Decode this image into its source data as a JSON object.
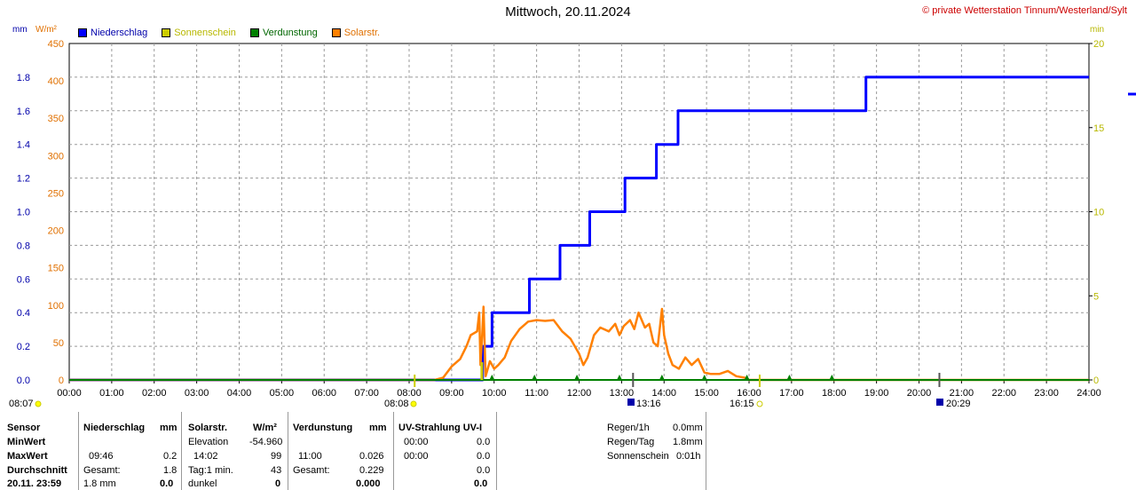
{
  "header": {
    "title": "Mittwoch, 20.11.2024",
    "copyright": "© private Wetterstation Tinnum/Westerland/Sylt",
    "unit_mm": "mm",
    "unit_wm2": "W/m²",
    "unit_min": "min"
  },
  "colors": {
    "niederschlag": "#0000ff",
    "sonnenschein": "#cccc00",
    "verdunstung": "#008000",
    "solar": "#ff8000"
  },
  "legend": {
    "items": [
      {
        "label": "Niederschlag",
        "color": "#0000ff",
        "text_color": "#0000aa"
      },
      {
        "label": "Sonnenschein",
        "color": "#cccc00",
        "text_color": "#b8b800"
      },
      {
        "label": "Verdunstung",
        "color": "#008000",
        "text_color": "#006600"
      },
      {
        "label": "Solarstr.",
        "color": "#ff8000",
        "text_color": "#e07000"
      }
    ]
  },
  "chart_data": {
    "type": "line",
    "title": "Mittwoch, 20.11.2024",
    "xlim": [
      0,
      24
    ],
    "x_ticks": [
      "00:00",
      "01:00",
      "02:00",
      "03:00",
      "04:00",
      "05:00",
      "06:00",
      "07:00",
      "08:00",
      "09:00",
      "10:00",
      "11:00",
      "12:00",
      "13:00",
      "14:00",
      "15:00",
      "16:00",
      "17:00",
      "18:00",
      "19:00",
      "20:00",
      "21:00",
      "22:00",
      "23:00",
      "24:00"
    ],
    "y_left_mm": {
      "ylim": [
        0,
        2.0
      ],
      "ticks": [
        "0.0",
        "0.2",
        "0.4",
        "0.6",
        "0.8",
        "1.0",
        "1.2",
        "1.4",
        "1.6",
        "1.8"
      ]
    },
    "y_left_wm2": {
      "ylim": [
        0,
        450
      ],
      "ticks": [
        "0",
        "50",
        "100",
        "150",
        "200",
        "250",
        "300",
        "350",
        "400",
        "450"
      ]
    },
    "y_right_min": {
      "ylim": [
        0,
        20
      ],
      "ticks": [
        "0",
        "5",
        "10",
        "15",
        "20"
      ]
    },
    "grid": true,
    "series": [
      {
        "name": "Niederschlag",
        "axis": "mm",
        "step": true,
        "points": [
          [
            0,
            0
          ],
          [
            9.73,
            0
          ],
          [
            9.73,
            0.2
          ],
          [
            9.95,
            0.2
          ],
          [
            9.95,
            0.4
          ],
          [
            10.83,
            0.4
          ],
          [
            10.83,
            0.6
          ],
          [
            11.55,
            0.6
          ],
          [
            11.55,
            0.8
          ],
          [
            12.25,
            0.8
          ],
          [
            12.25,
            1.0
          ],
          [
            13.08,
            1.0
          ],
          [
            13.08,
            1.2
          ],
          [
            13.82,
            1.2
          ],
          [
            13.82,
            1.4
          ],
          [
            14.33,
            1.4
          ],
          [
            14.33,
            1.6
          ],
          [
            18.75,
            1.6
          ],
          [
            18.75,
            1.8
          ],
          [
            24,
            1.8
          ]
        ]
      },
      {
        "name": "Solarstr.",
        "axis": "wm2",
        "points": [
          [
            0,
            0
          ],
          [
            8.6,
            0
          ],
          [
            8.8,
            3
          ],
          [
            9.0,
            18
          ],
          [
            9.2,
            28
          ],
          [
            9.35,
            45
          ],
          [
            9.45,
            60
          ],
          [
            9.6,
            65
          ],
          [
            9.65,
            90
          ],
          [
            9.68,
            20
          ],
          [
            9.72,
            60
          ],
          [
            9.75,
            98
          ],
          [
            9.8,
            5
          ],
          [
            9.9,
            25
          ],
          [
            10.0,
            15
          ],
          [
            10.1,
            20
          ],
          [
            10.25,
            30
          ],
          [
            10.4,
            52
          ],
          [
            10.6,
            68
          ],
          [
            10.8,
            78
          ],
          [
            11.0,
            80
          ],
          [
            11.2,
            79
          ],
          [
            11.4,
            80
          ],
          [
            11.6,
            65
          ],
          [
            11.8,
            55
          ],
          [
            12.0,
            35
          ],
          [
            12.1,
            20
          ],
          [
            12.2,
            30
          ],
          [
            12.35,
            60
          ],
          [
            12.5,
            70
          ],
          [
            12.7,
            65
          ],
          [
            12.85,
            75
          ],
          [
            12.95,
            60
          ],
          [
            13.05,
            72
          ],
          [
            13.2,
            80
          ],
          [
            13.3,
            68
          ],
          [
            13.4,
            90
          ],
          [
            13.55,
            70
          ],
          [
            13.65,
            75
          ],
          [
            13.75,
            50
          ],
          [
            13.85,
            45
          ],
          [
            13.95,
            95
          ],
          [
            14.0,
            60
          ],
          [
            14.1,
            35
          ],
          [
            14.2,
            20
          ],
          [
            14.35,
            15
          ],
          [
            14.5,
            30
          ],
          [
            14.65,
            20
          ],
          [
            14.8,
            28
          ],
          [
            14.95,
            10
          ],
          [
            15.1,
            8
          ],
          [
            15.3,
            8
          ],
          [
            15.5,
            12
          ],
          [
            15.7,
            5
          ],
          [
            15.9,
            3
          ],
          [
            16.0,
            0
          ],
          [
            24,
            0
          ]
        ]
      }
    ],
    "annotations": [
      "08:07",
      "08:08",
      "13:16",
      "16:15",
      "20:29"
    ]
  },
  "stats": {
    "col1": {
      "header": "Sensor",
      "min": "MinWert",
      "max": "MaxWert",
      "avg": "Durchschnitt",
      "date": "20.11. 23:59"
    },
    "niederschlag": {
      "header": "Niederschlag",
      "unit": "mm",
      "max_time": "09:46",
      "max_val": "0.2",
      "total_label": "Gesamt:",
      "total_val": "1.8",
      "last_label": "1.8 mm",
      "last_val": "0.0"
    },
    "solar": {
      "header": "Solarstr.",
      "unit": "W/m²",
      "elev_label": "Elevation",
      "elev_val": "-54.960",
      "max_time": "14:02",
      "max_val": "99",
      "day_label": "Tag:1 min.",
      "day_val": "43",
      "last_label": "dunkel",
      "last_val": "0"
    },
    "verdunstung": {
      "header": "Verdunstung",
      "unit": "mm",
      "max_time": "11:00",
      "max_val": "0.026",
      "total_label": "Gesamt:",
      "total_val": "0.229",
      "last_val": "0.000"
    },
    "uv": {
      "header": "UV-Strahlung UV-I",
      "min_time": "00:00",
      "min_val": "0.0",
      "max_time": "00:00",
      "max_val": "0.0",
      "avg_val": "0.0",
      "last_val": "0.0"
    },
    "summary": {
      "r1_label": "Regen/1h",
      "r1_val": "0.0mm",
      "r2_label": "Regen/Tag",
      "r2_val": "1.8mm",
      "r3_label": "Sonnenschein",
      "r3_val": "0:01h"
    }
  }
}
